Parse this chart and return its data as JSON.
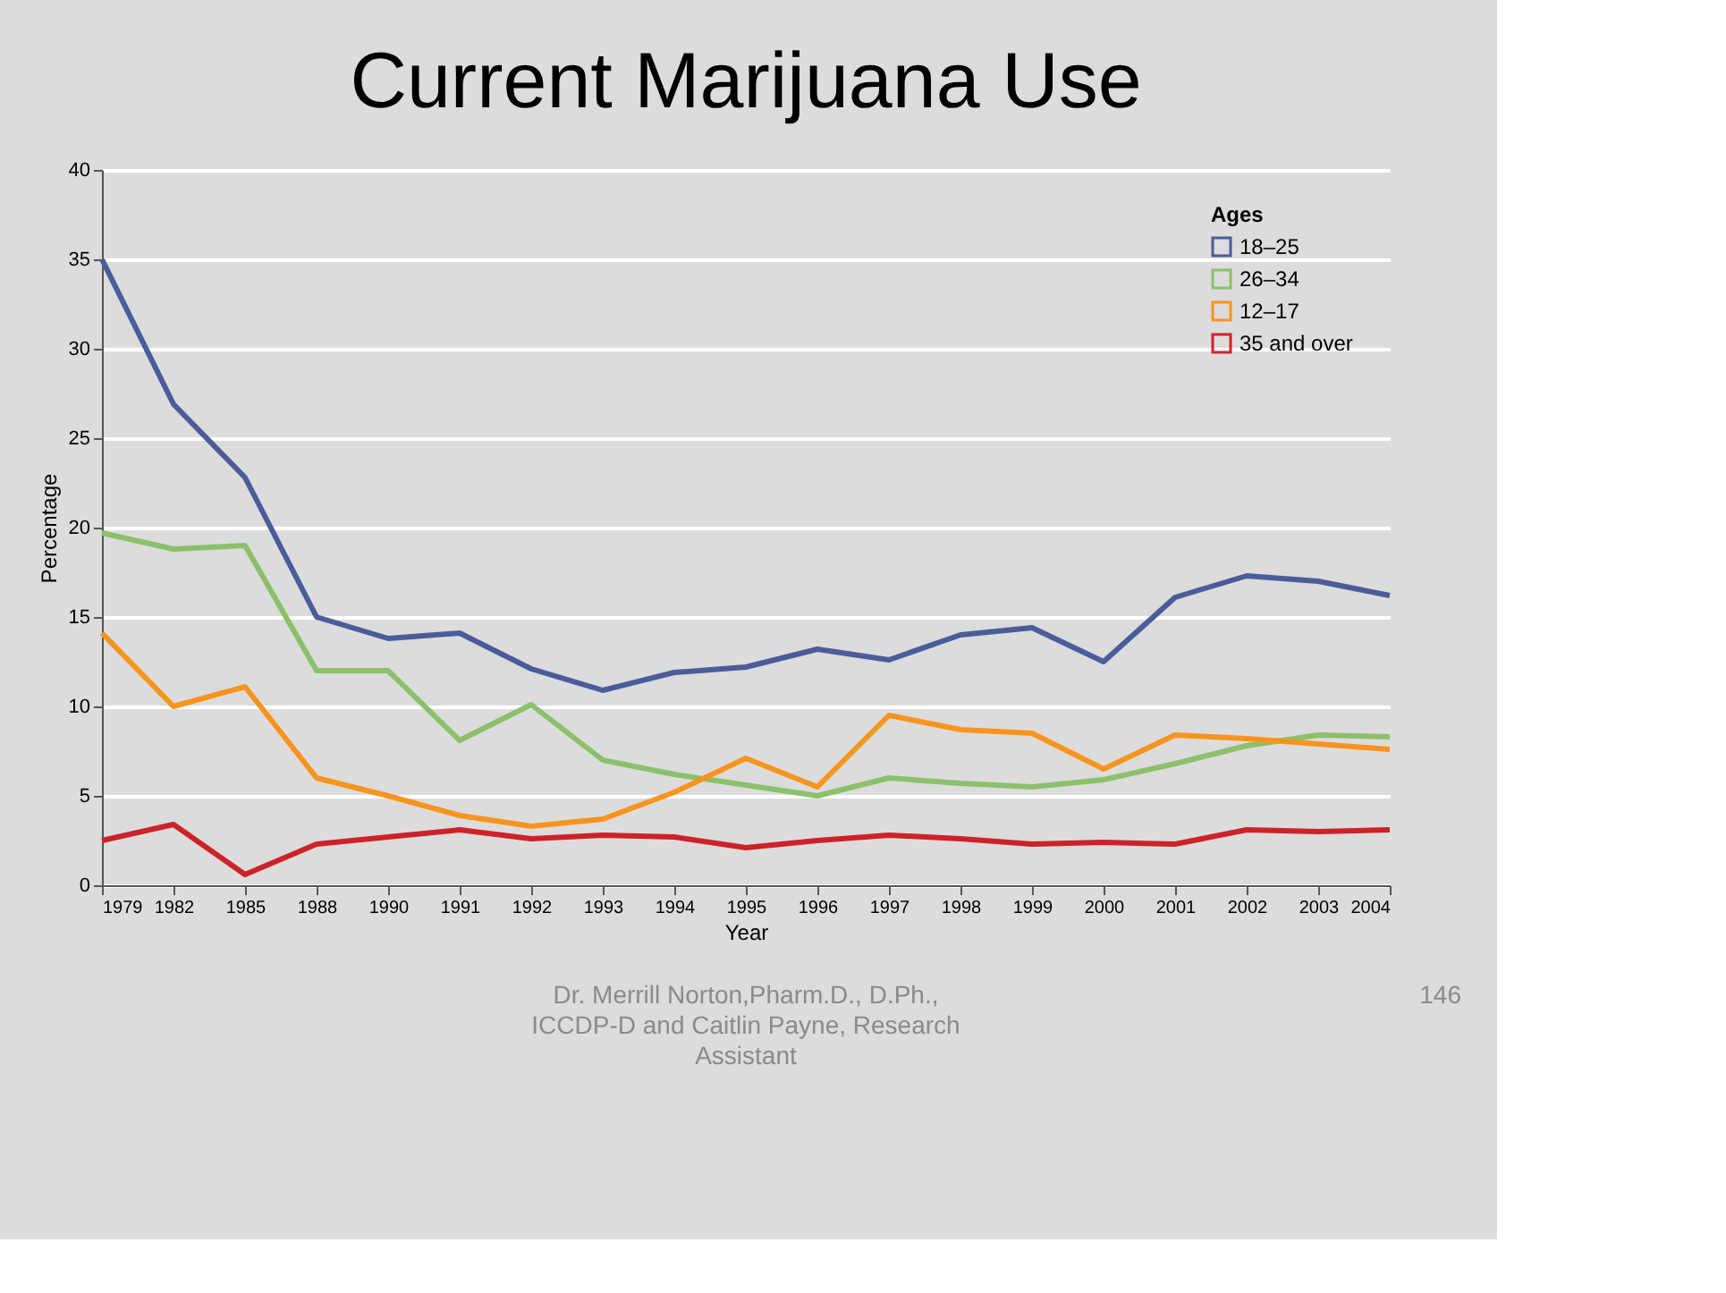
{
  "chart_data": {
    "type": "line",
    "title": "Current Marijuana Use",
    "xlabel": "Year",
    "ylabel": "Percentage",
    "legend_title": "Ages",
    "categories": [
      "1979",
      "1982",
      "1985",
      "1988",
      "1990",
      "1991",
      "1992",
      "1993",
      "1994",
      "1995",
      "1996",
      "1997",
      "1998",
      "1999",
      "2000",
      "2001",
      "2002",
      "2003",
      "2004"
    ],
    "series": [
      {
        "name": "18–25",
        "color": "#4a5c9a",
        "values": [
          35,
          26.9,
          22.8,
          15.0,
          13.8,
          14.1,
          12.1,
          10.9,
          11.9,
          12.2,
          13.2,
          12.6,
          14.0,
          14.4,
          12.5,
          16.1,
          17.3,
          17.0,
          16.2
        ]
      },
      {
        "name": "26–34",
        "color": "#8cc06a",
        "values": [
          19.7,
          18.8,
          19.0,
          12.0,
          12.0,
          8.1,
          10.1,
          7.0,
          6.2,
          5.6,
          5.0,
          6.0,
          5.7,
          5.5,
          5.9,
          6.8,
          7.8,
          8.4,
          8.3
        ]
      },
      {
        "name": "12–17",
        "color": "#f7941d",
        "values": [
          14.1,
          10.0,
          11.1,
          6.0,
          5.0,
          3.9,
          3.3,
          3.7,
          5.2,
          7.1,
          5.5,
          9.5,
          8.7,
          8.5,
          6.5,
          8.4,
          8.2,
          7.9,
          7.6
        ]
      },
      {
        "name": "35 and over",
        "color": "#cc2229",
        "values": [
          2.5,
          3.4,
          0.6,
          2.3,
          2.7,
          3.1,
          2.6,
          2.8,
          2.7,
          2.1,
          2.5,
          2.8,
          2.6,
          2.3,
          2.4,
          2.3,
          3.1,
          3.0,
          3.1
        ]
      }
    ],
    "ylim": [
      0,
      40
    ],
    "yticks": [
      0,
      5,
      10,
      15,
      20,
      25,
      30,
      35,
      40
    ],
    "grid": "y",
    "legend": "top right",
    "marker": "none",
    "line_style": "solid",
    "annotations": [
      "Dr. Merrill Norton,Pharm.D., D.Ph.,\nICCDP-D and Caitlin Payne, Research\nAssistant",
      "146"
    ]
  }
}
